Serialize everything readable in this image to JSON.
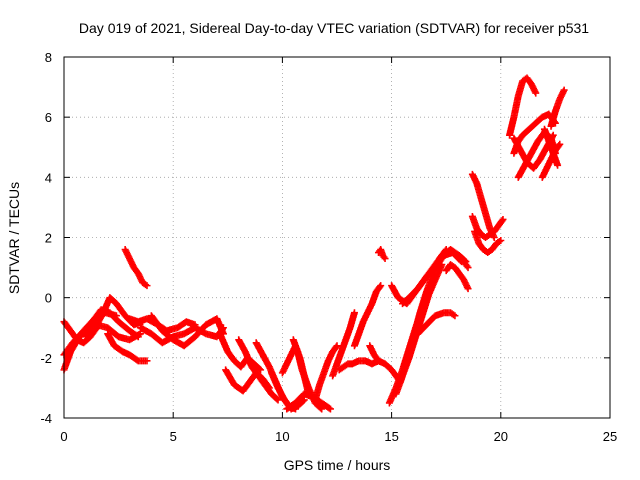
{
  "chart_data": {
    "type": "scatter",
    "title": "Day 019 of 2021, Sidereal Day-to-day VTEC variation (SDTVAR) for receiver p531",
    "xlabel": "GPS time / hours",
    "ylabel": "SDTVAR / TECUs",
    "xlim": [
      0,
      25
    ],
    "ylim": [
      -4,
      8
    ],
    "xticks": [
      "0",
      "5",
      "10",
      "15",
      "20",
      "25"
    ],
    "yticks": [
      "-4",
      "-2",
      "0",
      "2",
      "4",
      "6",
      "8"
    ],
    "grid": true,
    "marker": "plus",
    "color": "#ff0000",
    "series": [
      {
        "name": "s1",
        "x": [
          0,
          0.3,
          0.6,
          0.9,
          1.2,
          1.5
        ],
        "y": [
          -0.8,
          -1.1,
          -1.4,
          -1.5,
          -1.3,
          -1.0
        ]
      },
      {
        "name": "s2",
        "x": [
          0,
          0.3,
          0.7,
          1.1,
          1.5,
          2.0,
          2.5,
          3.0,
          3.5
        ],
        "y": [
          -2.4,
          -1.8,
          -1.3,
          -1.0,
          -0.9,
          -1.0,
          -1.3,
          -1.4,
          -1.2
        ]
      },
      {
        "name": "s3",
        "x": [
          0,
          0.4,
          0.9,
          1.4,
          1.9,
          2.4
        ],
        "y": [
          -1.9,
          -1.5,
          -1.1,
          -0.7,
          -0.5,
          -0.6
        ]
      },
      {
        "name": "s4",
        "x": [
          1.0,
          1.3,
          1.7,
          2.1,
          2.5,
          3.0,
          3.4
        ],
        "y": [
          -1.3,
          -0.8,
          -0.4,
          -0.5,
          -0.8,
          -1.1,
          -1.3
        ]
      },
      {
        "name": "s5",
        "x": [
          1.5,
          1.8,
          2.1,
          2.4,
          2.8,
          3.2,
          3.6
        ],
        "y": [
          -0.9,
          -0.5,
          0.0,
          -0.2,
          -0.6,
          -0.9,
          -0.8
        ]
      },
      {
        "name": "s6",
        "x": [
          2.0,
          2.3,
          2.7,
          3.0,
          3.4,
          3.8
        ],
        "y": [
          -1.2,
          -1.6,
          -1.8,
          -1.9,
          -2.1,
          -2.1
        ]
      },
      {
        "name": "s7",
        "x": [
          2.8,
          3.0,
          3.2,
          3.4,
          3.6,
          3.8
        ],
        "y": [
          1.6,
          1.3,
          1.0,
          0.8,
          0.5,
          0.4
        ]
      },
      {
        "name": "s8",
        "x": [
          3.0,
          3.4,
          3.8,
          4.3,
          4.7,
          5.2,
          5.6,
          6.0
        ],
        "y": [
          -0.7,
          -0.8,
          -0.7,
          -0.9,
          -1.1,
          -1.0,
          -0.8,
          -0.9
        ]
      },
      {
        "name": "s9",
        "x": [
          3.5,
          4.0,
          4.5,
          5.0,
          5.5,
          6.0,
          6.5,
          7.0,
          7.3
        ],
        "y": [
          -1.0,
          -1.2,
          -1.5,
          -1.3,
          -1.2,
          -1.0,
          -1.2,
          -1.3,
          -1.0
        ]
      },
      {
        "name": "s10",
        "x": [
          4.0,
          4.5,
          5.0,
          5.5,
          6.0,
          6.5,
          7.0,
          7.3
        ],
        "y": [
          -0.6,
          -1.1,
          -1.4,
          -1.6,
          -1.3,
          -0.9,
          -0.7,
          -1.2
        ]
      },
      {
        "name": "s11",
        "x": [
          7.2,
          7.5,
          7.8,
          8.1,
          8.4,
          8.7,
          9.0
        ],
        "y": [
          -1.3,
          -1.8,
          -2.1,
          -2.3,
          -2.0,
          -2.2,
          -2.4
        ]
      },
      {
        "name": "s12",
        "x": [
          7.4,
          7.8,
          8.2,
          8.5,
          8.8,
          9.1,
          9.4
        ],
        "y": [
          -2.4,
          -2.9,
          -3.1,
          -2.8,
          -2.5,
          -2.7,
          -3.0
        ]
      },
      {
        "name": "s13",
        "x": [
          8.0,
          8.3,
          8.6,
          8.9,
          9.2,
          9.5,
          9.8
        ],
        "y": [
          -1.4,
          -1.8,
          -2.3,
          -2.6,
          -2.9,
          -3.2,
          -3.4
        ]
      },
      {
        "name": "s14",
        "x": [
          8.8,
          9.1,
          9.4,
          9.7,
          10.0,
          10.3,
          10.6
        ],
        "y": [
          -1.5,
          -1.9,
          -2.3,
          -2.8,
          -3.3,
          -3.6,
          -3.7
        ]
      },
      {
        "name": "s15",
        "x": [
          9.5,
          9.8,
          10.1,
          10.4,
          10.7,
          11.0
        ],
        "y": [
          -2.5,
          -3.0,
          -3.4,
          -3.7,
          -3.6,
          -3.4
        ]
      },
      {
        "name": "s16",
        "x": [
          10.0,
          10.2,
          10.4,
          10.6,
          10.8,
          11.0,
          11.2
        ],
        "y": [
          -2.5,
          -2.2,
          -1.9,
          -1.6,
          -2.0,
          -2.6,
          -3.2
        ]
      },
      {
        "name": "s17",
        "x": [
          10.5,
          10.7,
          10.9,
          11.2,
          11.5,
          11.8
        ],
        "y": [
          -1.4,
          -1.8,
          -2.4,
          -3.0,
          -3.5,
          -3.7
        ]
      },
      {
        "name": "s18",
        "x": [
          10.2,
          10.6,
          11.0,
          11.4,
          11.8,
          12.2
        ],
        "y": [
          -3.7,
          -3.5,
          -3.2,
          -3.3,
          -3.5,
          -3.7
        ]
      },
      {
        "name": "s19",
        "x": [
          11.5,
          11.7,
          11.9,
          12.1,
          12.3,
          12.5
        ],
        "y": [
          -3.4,
          -2.9,
          -2.5,
          -2.1,
          -1.8,
          -1.6
        ]
      },
      {
        "name": "s20",
        "x": [
          12.3,
          12.5,
          12.7,
          12.9,
          13.1,
          13.3
        ],
        "y": [
          -2.6,
          -2.2,
          -1.8,
          -1.4,
          -1.0,
          -0.5
        ]
      },
      {
        "name": "s21",
        "x": [
          12.6,
          12.8,
          13.0,
          13.2,
          13.5,
          13.8,
          14.1,
          14.4
        ],
        "y": [
          -2.4,
          -2.3,
          -2.2,
          -2.2,
          -2.1,
          -2.1,
          -2.2,
          -2.1
        ]
      },
      {
        "name": "s22",
        "x": [
          13.3,
          13.5,
          13.7,
          13.9,
          14.1,
          14.3,
          14.5
        ],
        "y": [
          -1.6,
          -1.2,
          -0.8,
          -0.5,
          -0.2,
          0.2,
          0.4
        ]
      },
      {
        "name": "s23",
        "x": [
          14.4,
          14.5,
          14.6,
          14.7
        ],
        "y": [
          1.5,
          1.6,
          1.4,
          1.3
        ]
      },
      {
        "name": "s24",
        "x": [
          14.0,
          14.2,
          14.4,
          14.7,
          15.0,
          15.3
        ],
        "y": [
          -1.6,
          -1.9,
          -2.1,
          -2.2,
          -2.4,
          -2.7
        ]
      },
      {
        "name": "s25",
        "x": [
          14.9,
          15.2,
          15.5,
          15.8,
          16.1,
          16.4,
          16.7,
          17.0
        ],
        "y": [
          -3.5,
          -3.0,
          -2.4,
          -1.7,
          -1.0,
          -0.4,
          0.2,
          0.7
        ]
      },
      {
        "name": "s26",
        "x": [
          15.2,
          15.5,
          15.8,
          16.1,
          16.4,
          16.7,
          17.0,
          17.3
        ],
        "y": [
          -3.2,
          -2.6,
          -2.0,
          -1.3,
          -0.6,
          0.1,
          0.6,
          1.1
        ]
      },
      {
        "name": "s27",
        "x": [
          15.4,
          15.7,
          16.0,
          16.3,
          16.6,
          16.9,
          17.2,
          17.5
        ],
        "y": [
          -2.8,
          -2.1,
          -1.3,
          -0.5,
          0.2,
          0.8,
          1.3,
          1.6
        ]
      },
      {
        "name": "s28",
        "x": [
          15.5,
          15.8,
          16.2,
          16.6,
          17.0,
          17.4,
          17.8,
          18.2
        ],
        "y": [
          -0.2,
          0.0,
          0.3,
          0.7,
          1.0,
          1.4,
          1.5,
          1.2
        ]
      },
      {
        "name": "s29",
        "x": [
          15.0,
          15.3,
          15.7,
          16.1,
          16.5,
          16.9,
          17.3,
          17.7,
          18.1,
          18.4
        ],
        "y": [
          0.4,
          0.0,
          -0.2,
          0.2,
          0.6,
          1.0,
          1.4,
          1.6,
          1.4,
          1.2
        ]
      },
      {
        "name": "s30",
        "x": [
          16.2,
          16.6,
          17.0,
          17.4,
          17.7,
          17.9
        ],
        "y": [
          -1.2,
          -0.9,
          -0.6,
          -0.5,
          -0.5,
          -0.6
        ]
      },
      {
        "name": "s31",
        "x": [
          17.5,
          17.7,
          17.9,
          18.1,
          18.3,
          18.5
        ],
        "y": [
          0.9,
          1.1,
          1.0,
          0.8,
          0.6,
          0.3
        ]
      },
      {
        "name": "s32",
        "x": [
          18.2,
          18.3,
          18.4,
          18.5
        ],
        "y": [
          1.3,
          1.2,
          1.1,
          1.0
        ]
      },
      {
        "name": "s33",
        "x": [
          18.7,
          18.9,
          19.1,
          19.3,
          19.5,
          19.7
        ],
        "y": [
          4.1,
          3.8,
          3.3,
          2.8,
          2.3,
          2.0
        ]
      },
      {
        "name": "s34",
        "x": [
          18.7,
          18.9,
          19.1,
          19.3,
          19.5,
          19.7,
          19.9,
          20.1
        ],
        "y": [
          2.7,
          2.3,
          2.1,
          2.0,
          2.1,
          2.2,
          2.4,
          2.6
        ]
      },
      {
        "name": "s35",
        "x": [
          18.8,
          19.0,
          19.2,
          19.4,
          19.6,
          19.8,
          20.0
        ],
        "y": [
          2.2,
          1.8,
          1.6,
          1.5,
          1.6,
          1.8,
          1.9
        ]
      },
      {
        "name": "s36",
        "x": [
          20.4,
          20.6,
          20.8,
          21.0,
          21.2,
          21.4,
          21.6
        ],
        "y": [
          5.4,
          6.0,
          6.7,
          7.2,
          7.3,
          7.1,
          6.8
        ]
      },
      {
        "name": "s37",
        "x": [
          20.6,
          20.8,
          21.0,
          21.3,
          21.6,
          21.9,
          22.2,
          22.5
        ],
        "y": [
          4.8,
          5.2,
          5.4,
          5.6,
          5.8,
          6.0,
          6.1,
          5.8
        ]
      },
      {
        "name": "s38",
        "x": [
          20.6,
          20.9,
          21.2,
          21.5,
          21.8,
          22.1,
          22.4
        ],
        "y": [
          5.3,
          4.9,
          4.5,
          4.3,
          4.6,
          5.0,
          5.4
        ]
      },
      {
        "name": "s39",
        "x": [
          20.8,
          21.1,
          21.4,
          21.7,
          22.0,
          22.3,
          22.5
        ],
        "y": [
          4.0,
          4.4,
          4.8,
          5.2,
          5.5,
          5.3,
          4.8
        ]
      },
      {
        "name": "s40",
        "x": [
          21.9,
          22.1,
          22.3,
          22.5,
          22.7
        ],
        "y": [
          4.0,
          4.3,
          4.6,
          4.9,
          5.1
        ]
      },
      {
        "name": "s41",
        "x": [
          22.3,
          22.5,
          22.7,
          22.9
        ],
        "y": [
          5.7,
          6.2,
          6.6,
          6.9
        ]
      },
      {
        "name": "s42",
        "x": [
          22.0,
          22.2,
          22.4,
          22.6
        ],
        "y": [
          5.6,
          5.2,
          4.8,
          4.4
        ]
      }
    ]
  }
}
